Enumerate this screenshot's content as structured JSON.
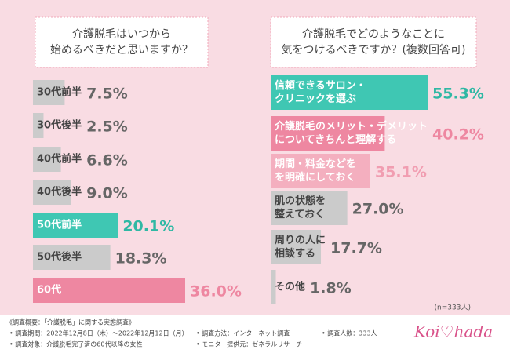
{
  "chart_data": [
    {
      "type": "hbar",
      "title": [
        "介護脱毛はいつから",
        "始めるべきだと思いますか？"
      ],
      "categories": [
        [
          "30代前半"
        ],
        [
          "30代後半"
        ],
        [
          "40代前半"
        ],
        [
          "40代後半"
        ],
        [
          "50代前半"
        ],
        [
          "50代後半"
        ],
        [
          "60代"
        ]
      ],
      "values": [
        7.5,
        2.5,
        6.6,
        9.0,
        20.1,
        18.3,
        36.0
      ],
      "value_labels": [
        "7.5%",
        "2.5%",
        "6.6%",
        "9.0%",
        "20.1%",
        "18.3%",
        "36.0%"
      ],
      "colors": [
        "#cbcbcb",
        "#cbcbcb",
        "#cbcbcb",
        "#cbcbcb",
        "#3fc7b3",
        "#cbcbcb",
        "#ee87a1"
      ],
      "value_colors": [
        "#666666",
        "#666666",
        "#666666",
        "#666666",
        "#2fb8a4",
        "#666666",
        "#ee87a1"
      ],
      "xlim": [
        0,
        36
      ]
    },
    {
      "type": "hbar",
      "title": [
        "介護脱毛でどのようなことに",
        "気をつけるべきですか？(複数回答可)"
      ],
      "categories": [
        [
          "信頼できるサロン・",
          "クリニックを選ぶ"
        ],
        [
          "介護脱毛のメリット・デメリット",
          "についてきちんと理解する"
        ],
        [
          "期間・料金などを",
          "を明確にしておく"
        ],
        [
          "肌の状態を",
          "整えておく"
        ],
        [
          "周りの人に",
          "相談する"
        ],
        [
          "その他"
        ]
      ],
      "values": [
        55.3,
        40.2,
        35.1,
        27.0,
        17.7,
        1.8
      ],
      "value_labels": [
        "55.3%",
        "40.2%",
        "35.1%",
        "27.0%",
        "17.7%",
        "1.8%"
      ],
      "colors": [
        "#3fc7b3",
        "#ee87a1",
        "#f4afbf",
        "#cbcbcb",
        "#cbcbcb",
        "#cbcbcb"
      ],
      "value_colors": [
        "#2fb8a4",
        "#ee87a1",
        "#f19db1",
        "#666666",
        "#666666",
        "#666666"
      ],
      "xlim": [
        0,
        55.3
      ],
      "note": "(n=333人)"
    }
  ],
  "footer": {
    "heading": "《調査概要：「介護脱毛」に関する実態調査》",
    "items": [
      "• 調査期間：2022年12月8日（木）～2022年12月12日（月）",
      "• 調査方法：インターネット調査",
      "• 調査人数：333人",
      "• 調査対象：介護脱毛完了済の60代以降の女性",
      "• モニター提供元：ゼネラルリサーチ"
    ],
    "logo": "Koi♡hada"
  }
}
